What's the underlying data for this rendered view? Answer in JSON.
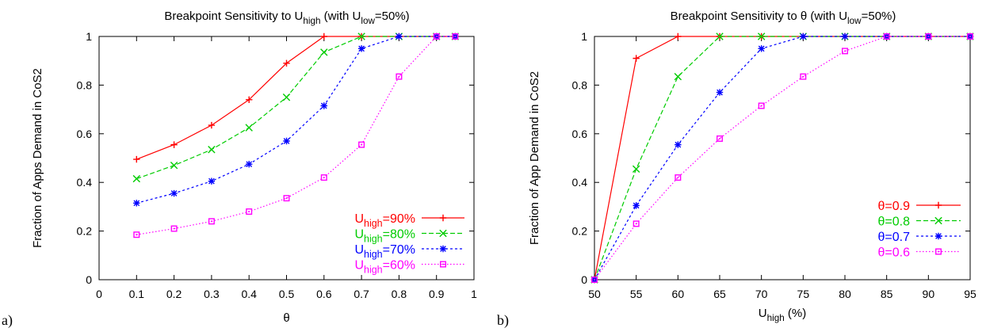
{
  "figures": [
    {
      "panel_label": "a)"
    },
    {
      "panel_label": "b)"
    }
  ],
  "chart_data": [
    {
      "type": "line",
      "title": "Breakpoint Sensitivity to U_high (with U_low=50%)",
      "title_parts": [
        "Breakpoint Sensitivity to U",
        "high",
        " (with U",
        "low",
        "=50%)"
      ],
      "xlabel": "θ",
      "ylabel": "Fraction of Apps Demand in CoS2",
      "xlim": [
        0,
        1
      ],
      "ylim": [
        0,
        1
      ],
      "xticks": [
        "0",
        "0.1",
        "0.2",
        "0.3",
        "0.4",
        "0.5",
        "0.6",
        "0.7",
        "0.8",
        "0.9",
        "1"
      ],
      "yticks": [
        "0",
        "0.2",
        "0.4",
        "0.6",
        "0.8",
        "1"
      ],
      "legend_position": "bottom-right",
      "x": [
        0.1,
        0.2,
        0.3,
        0.4,
        0.5,
        0.6,
        0.7,
        0.8,
        0.9,
        0.95
      ],
      "series": [
        {
          "name": "U_high=90%",
          "label_parts": [
            "U",
            "high",
            "=90%"
          ],
          "color": "#ff0000",
          "dash": "solid",
          "marker": "plus",
          "values": [
            0.495,
            0.555,
            0.635,
            0.74,
            0.89,
            1.0,
            1.0,
            1.0,
            1.0,
            1.0
          ]
        },
        {
          "name": "U_high=80%",
          "label_parts": [
            "U",
            "high",
            "=80%"
          ],
          "color": "#00cc00",
          "dash": "dashed",
          "marker": "x",
          "values": [
            0.415,
            0.47,
            0.535,
            0.625,
            0.75,
            0.935,
            1.0,
            1.0,
            1.0,
            1.0
          ]
        },
        {
          "name": "U_high=70%",
          "label_parts": [
            "U",
            "high",
            "=70%"
          ],
          "color": "#0000ff",
          "dash": "dotted",
          "marker": "star",
          "values": [
            0.315,
            0.355,
            0.405,
            0.475,
            0.57,
            0.715,
            0.95,
            1.0,
            1.0,
            1.0
          ]
        },
        {
          "name": "U_high=60%",
          "label_parts": [
            "U",
            "high",
            "=60%"
          ],
          "color": "#ff00ff",
          "dash": "fine-dotted",
          "marker": "square",
          "values": [
            0.185,
            0.21,
            0.24,
            0.28,
            0.335,
            0.42,
            0.555,
            0.835,
            1.0,
            1.0
          ]
        }
      ]
    },
    {
      "type": "line",
      "title": "Breakpoint Sensitivity to θ (with U_low=50%)",
      "title_parts": [
        "Breakpoint Sensitivity to θ  (with U",
        "low",
        "=50%)"
      ],
      "xlabel": "U_high (%)",
      "xlabel_parts": [
        "U",
        "high",
        " (%)"
      ],
      "ylabel": "Fraction of App Demand in CoS2",
      "xlim": [
        50,
        95
      ],
      "ylim": [
        0,
        1
      ],
      "xticks": [
        "50",
        "55",
        "60",
        "65",
        "70",
        "75",
        "80",
        "85",
        "90",
        "95"
      ],
      "yticks": [
        "0",
        "0.2",
        "0.4",
        "0.6",
        "0.8",
        "1"
      ],
      "legend_position": "center-right",
      "x": [
        50,
        55,
        60,
        65,
        70,
        75,
        80,
        85,
        90,
        95
      ],
      "series": [
        {
          "name": "θ=0.9",
          "label_parts": [
            "θ=0.9"
          ],
          "color": "#ff0000",
          "dash": "solid",
          "marker": "plus",
          "values": [
            0.0,
            0.91,
            1.0,
            1.0,
            1.0,
            1.0,
            1.0,
            1.0,
            1.0,
            1.0
          ]
        },
        {
          "name": "θ=0.8",
          "label_parts": [
            "θ=0.8"
          ],
          "color": "#00cc00",
          "dash": "dashed",
          "marker": "x",
          "values": [
            0.0,
            0.455,
            0.835,
            1.0,
            1.0,
            1.0,
            1.0,
            1.0,
            1.0,
            1.0
          ]
        },
        {
          "name": "θ=0.7",
          "label_parts": [
            "θ=0.7"
          ],
          "color": "#0000ff",
          "dash": "dotted",
          "marker": "star",
          "values": [
            0.0,
            0.305,
            0.555,
            0.77,
            0.95,
            1.0,
            1.0,
            1.0,
            1.0,
            1.0
          ]
        },
        {
          "name": "θ=0.6",
          "label_parts": [
            "θ=0.6"
          ],
          "color": "#ff00ff",
          "dash": "fine-dotted",
          "marker": "square",
          "values": [
            0.0,
            0.23,
            0.42,
            0.58,
            0.715,
            0.835,
            0.94,
            1.0,
            1.0,
            1.0
          ]
        }
      ]
    }
  ]
}
